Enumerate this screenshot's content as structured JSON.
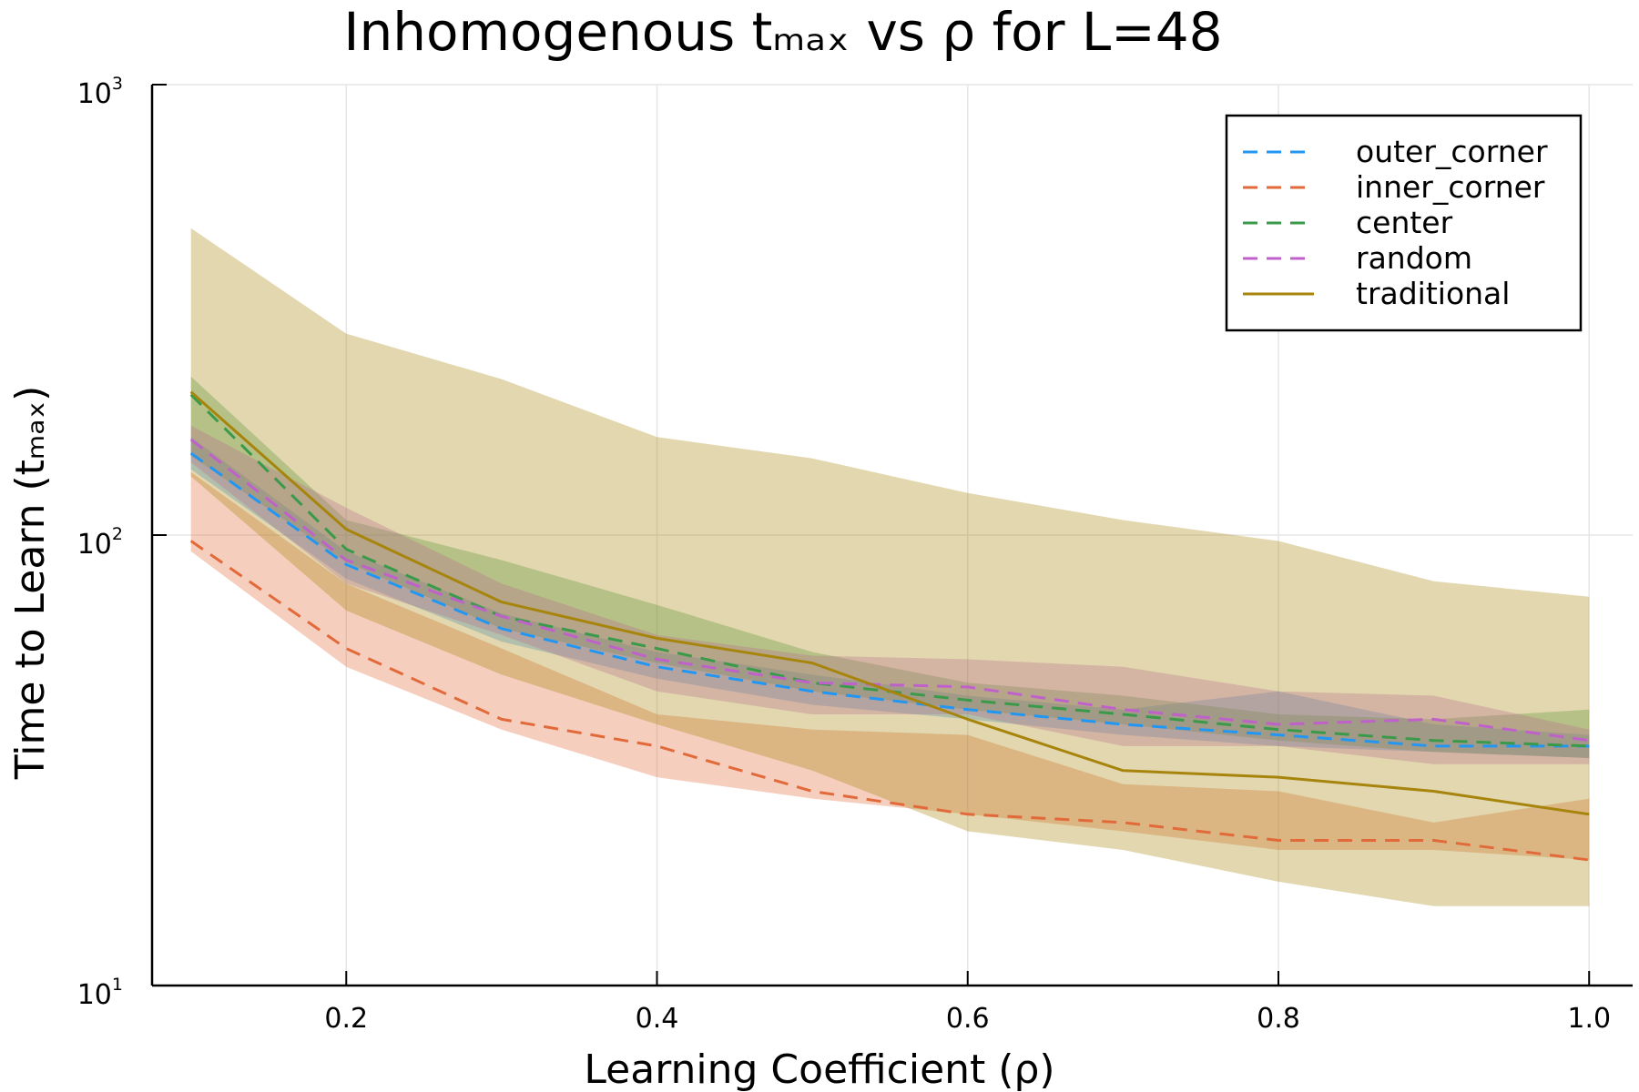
{
  "chart_data": {
    "type": "line",
    "title": "Inhomogenous tₘₐₓ vs ρ for L=48",
    "xlabel": "Learning Coefficient (ρ)",
    "ylabel": "Time to Learn (tₘₐₓ)",
    "x": [
      0.1,
      0.2,
      0.3,
      0.4,
      0.5,
      0.6,
      0.7,
      0.8,
      0.9,
      1.0
    ],
    "xlim": [
      0.075,
      1.028
    ],
    "ylim": [
      10,
      1000
    ],
    "yscale": "log",
    "x_ticks": [
      0.2,
      0.4,
      0.6,
      0.8,
      1.0
    ],
    "x_tick_labels": [
      "0.2",
      "0.4",
      "0.6",
      "0.8",
      "1.0"
    ],
    "y_ticks": [
      10,
      100,
      1000
    ],
    "y_tick_base": "10",
    "y_tick_exponents": [
      "1",
      "2",
      "3"
    ],
    "grid": true,
    "legend_position": "top-right",
    "series": [
      {
        "name": "outer_corner",
        "color": "#2196f3",
        "style": "dashed",
        "values": [
          152,
          86,
          62,
          51,
          45,
          41,
          38,
          36,
          34,
          34
        ],
        "lower": [
          140,
          80,
          58,
          48,
          42,
          39,
          36,
          34,
          33,
          32
        ],
        "upper": [
          165,
          92,
          67,
          55,
          49,
          44,
          41,
          45,
          38,
          36
        ]
      },
      {
        "name": "inner_corner",
        "color": "#e26a3a",
        "style": "dashed",
        "values": [
          97,
          56,
          39,
          34,
          27,
          24,
          23,
          21,
          21,
          19
        ],
        "lower": [
          92,
          51,
          37,
          29,
          26,
          24,
          22,
          20,
          20,
          19
        ],
        "upper": [
          138,
          78,
          56,
          40,
          37,
          36,
          28,
          27,
          23,
          26
        ]
      },
      {
        "name": "center",
        "color": "#3a9a4a",
        "style": "dashed",
        "values": [
          205,
          93,
          66,
          56,
          47,
          43,
          40,
          37,
          35,
          34
        ],
        "lower": [
          150,
          87,
          62,
          52,
          45,
          41,
          38,
          35,
          33,
          32
        ],
        "upper": [
          225,
          108,
          88,
          70,
          55,
          47,
          44,
          40,
          39,
          41
        ]
      },
      {
        "name": "random",
        "color": "#c061cb",
        "style": "dashed",
        "values": [
          163,
          88,
          66,
          53,
          47,
          46,
          41,
          38,
          39,
          35
        ],
        "lower": [
          145,
          78,
          60,
          45,
          40,
          40,
          34,
          34,
          31,
          31
        ],
        "upper": [
          175,
          115,
          78,
          60,
          54,
          53,
          51,
          45,
          44,
          37
        ]
      },
      {
        "name": "traditional",
        "color": "#a7850d",
        "style": "solid",
        "values": [
          208,
          103,
          71,
          59,
          52,
          39,
          30,
          29,
          27,
          24
        ],
        "lower": [
          135,
          68,
          49,
          38,
          30,
          22,
          20,
          17,
          15,
          15
        ],
        "upper": [
          480,
          280,
          222,
          165,
          148,
          124,
          108,
          97,
          79,
          73
        ]
      }
    ]
  }
}
